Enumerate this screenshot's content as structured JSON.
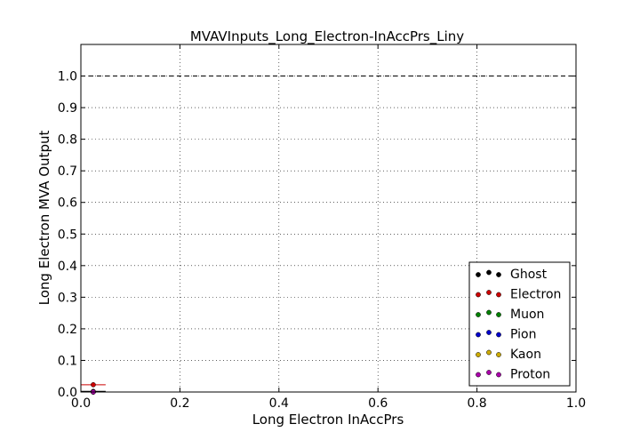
{
  "chart_data": {
    "type": "scatter",
    "title": "MVAVInputs_Long_Electron-InAccPrs_Liny",
    "xlabel": "Long Electron InAccPrs",
    "ylabel": "Long Electron MVA Output",
    "xlim": [
      0.0,
      1.0
    ],
    "ylim": [
      0.0,
      1.1
    ],
    "x_ticks": [
      "0.0",
      "0.2",
      "0.4",
      "0.6",
      "0.8",
      "1.0"
    ],
    "y_ticks": [
      "0.0",
      "0.1",
      "0.2",
      "0.3",
      "0.4",
      "0.5",
      "0.6",
      "0.7",
      "0.8",
      "0.9",
      "1.0"
    ],
    "grid": true,
    "reference_line_y": 1.0,
    "legend_position": "lower-right",
    "series": [
      {
        "name": "Ghost",
        "color": "#000000",
        "points": [
          {
            "x": 0.025,
            "y": 0.002,
            "xerr": 0.025
          }
        ]
      },
      {
        "name": "Electron",
        "color": "#cc0000",
        "points": [
          {
            "x": 0.025,
            "y": 0.023,
            "xerr": 0.025
          }
        ]
      },
      {
        "name": "Muon",
        "color": "#008000",
        "points": [
          {
            "x": 0.025,
            "y": 0.0,
            "xerr": 0.025
          }
        ]
      },
      {
        "name": "Pion",
        "color": "#0000cc",
        "points": [
          {
            "x": 0.025,
            "y": 0.0,
            "xerr": 0.025
          }
        ]
      },
      {
        "name": "Kaon",
        "color": "#ccaa00",
        "points": [
          {
            "x": 0.025,
            "y": 0.0,
            "xerr": 0.025
          }
        ]
      },
      {
        "name": "Proton",
        "color": "#aa00aa",
        "points": [
          {
            "x": 0.025,
            "y": 0.0,
            "xerr": 0.025
          }
        ]
      }
    ]
  }
}
